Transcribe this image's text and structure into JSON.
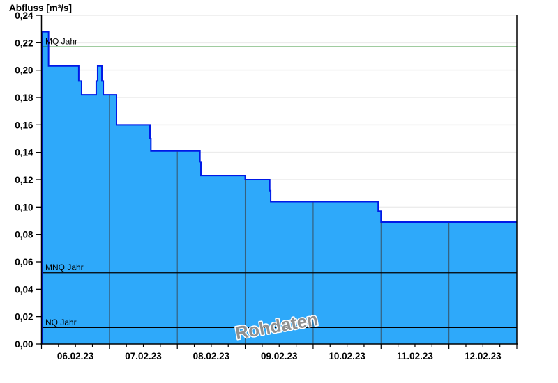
{
  "chart_data": {
    "type": "area",
    "title": "Abfluss [m³/s]",
    "watermark": "Rohdaten",
    "xlabel": "",
    "ylabel": "Abfluss [m³/s]",
    "ylim": [
      0,
      0.24
    ],
    "ytick_step": 0.02,
    "y_tick_labels": [
      "0,00",
      "0,02",
      "0,04",
      "0,06",
      "0,08",
      "0,10",
      "0,12",
      "0,14",
      "0,16",
      "0,18",
      "0,20",
      "0,22",
      "0,24"
    ],
    "x_labels": [
      "06.02.23",
      "07.02.23",
      "08.02.23",
      "09.02.23",
      "10.02.23",
      "11.02.23",
      "12.02.23"
    ],
    "x_range": "06.02.23 00:00 - 13.02.23 00:00",
    "grid": true,
    "legend": "none",
    "step_mode": "step-after",
    "points": [
      {
        "t": "06.02.23 00:00",
        "v": 0.228
      },
      {
        "t": "06.02.23 02:30",
        "v": 0.203
      },
      {
        "t": "06.02.23 13:10",
        "v": 0.192
      },
      {
        "t": "06.02.23 14:10",
        "v": 0.182
      },
      {
        "t": "06.02.23 19:20",
        "v": 0.192
      },
      {
        "t": "06.02.23 19:50",
        "v": 0.203
      },
      {
        "t": "06.02.23 21:20",
        "v": 0.192
      },
      {
        "t": "06.02.23 21:50",
        "v": 0.182
      },
      {
        "t": "07.02.23 02:30",
        "v": 0.16
      },
      {
        "t": "07.02.23 14:20",
        "v": 0.15
      },
      {
        "t": "07.02.23 14:40",
        "v": 0.141
      },
      {
        "t": "08.02.23 08:00",
        "v": 0.133
      },
      {
        "t": "08.02.23 08:20",
        "v": 0.123
      },
      {
        "t": "09.02.23 00:00",
        "v": 0.12
      },
      {
        "t": "09.02.23 08:40",
        "v": 0.112
      },
      {
        "t": "09.02.23 09:00",
        "v": 0.104
      },
      {
        "t": "10.02.23 23:00",
        "v": 0.097
      },
      {
        "t": "11.02.23 00:00",
        "v": 0.089
      },
      {
        "t": "13.02.23 00:00",
        "v": 0.089
      }
    ],
    "reference_lines": [
      {
        "label": "MQ Jahr",
        "value": 0.217,
        "color": "#007700"
      },
      {
        "label": "MNQ Jahr",
        "value": 0.052,
        "color": "#000000"
      },
      {
        "label": "NQ Jahr",
        "value": 0.012,
        "color": "#000000"
      }
    ],
    "colors": {
      "fill": "#2EA9FA",
      "line": "#0019E6",
      "grid_h": "#ECECEC",
      "grid_day": "#35607E",
      "axis": "#000000",
      "watermark": "#909090"
    }
  }
}
